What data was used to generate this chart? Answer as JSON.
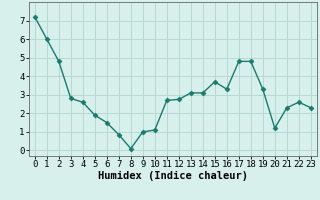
{
  "x": [
    0,
    1,
    2,
    3,
    4,
    5,
    6,
    7,
    8,
    9,
    10,
    11,
    12,
    13,
    14,
    15,
    16,
    17,
    18,
    19,
    20,
    21,
    22,
    23
  ],
  "y": [
    7.2,
    6.0,
    4.8,
    2.8,
    2.6,
    1.9,
    1.5,
    0.85,
    0.1,
    1.0,
    1.1,
    2.7,
    2.75,
    3.1,
    3.1,
    3.7,
    3.3,
    4.8,
    4.8,
    3.3,
    1.2,
    2.3,
    2.6,
    2.3
  ],
  "line_color": "#1a7a6e",
  "marker": "D",
  "marker_size": 2.5,
  "line_width": 1.0,
  "xlabel": "Humidex (Indice chaleur)",
  "bg_color": "#d8f0ec",
  "grid_color": "#b8d8d4",
  "xlim": [
    -0.5,
    23.5
  ],
  "ylim": [
    -0.3,
    8.0
  ],
  "xticks": [
    0,
    1,
    2,
    3,
    4,
    5,
    6,
    7,
    8,
    9,
    10,
    11,
    12,
    13,
    14,
    15,
    16,
    17,
    18,
    19,
    20,
    21,
    22,
    23
  ],
  "yticks": [
    0,
    1,
    2,
    3,
    4,
    5,
    6,
    7
  ],
  "xlabel_fontsize": 7.5,
  "tick_fontsize": 6.5
}
